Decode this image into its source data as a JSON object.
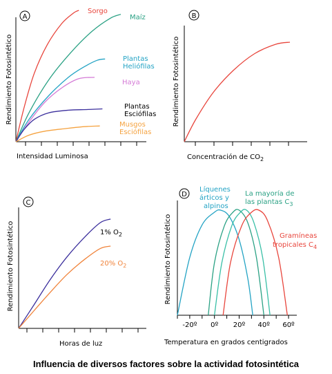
{
  "caption": "Influencia de diversos factores sobre la actividad fotosintética",
  "chart_data": [
    {
      "panel": "A",
      "type": "line",
      "xlabel": "Intensidad Luminosa",
      "ylabel": "Rendimiento Fotosintético",
      "series": [
        {
          "name": "Sorgo",
          "color": "#e8453c",
          "values": [
            [
              0,
              0
            ],
            [
              0.06,
              0.25
            ],
            [
              0.14,
              0.52
            ],
            [
              0.24,
              0.74
            ],
            [
              0.35,
              0.9
            ],
            [
              0.44,
              0.98
            ],
            [
              0.48,
              1.0
            ]
          ]
        },
        {
          "name": "Maíz",
          "color": "#2aa184",
          "values": [
            [
              0,
              0
            ],
            [
              0.1,
              0.22
            ],
            [
              0.25,
              0.47
            ],
            [
              0.42,
              0.68
            ],
            [
              0.58,
              0.84
            ],
            [
              0.72,
              0.94
            ],
            [
              0.8,
              0.97
            ]
          ]
        },
        {
          "name": "Plantas Heliófilas",
          "color": "#23a3c4",
          "values": [
            [
              0,
              0
            ],
            [
              0.1,
              0.17
            ],
            [
              0.25,
              0.35
            ],
            [
              0.4,
              0.49
            ],
            [
              0.52,
              0.57
            ],
            [
              0.62,
              0.62
            ],
            [
              0.68,
              0.63
            ]
          ]
        },
        {
          "name": "Haya",
          "color": "#d47ad6",
          "values": [
            [
              0,
              0
            ],
            [
              0.1,
              0.15
            ],
            [
              0.22,
              0.3
            ],
            [
              0.35,
              0.41
            ],
            [
              0.48,
              0.48
            ],
            [
              0.6,
              0.49
            ]
          ]
        },
        {
          "name": "Plantas Esciófilas",
          "color": "#3a2e9c",
          "values": [
            [
              0,
              0
            ],
            [
              0.06,
              0.09
            ],
            [
              0.14,
              0.17
            ],
            [
              0.25,
              0.22
            ],
            [
              0.4,
              0.24
            ],
            [
              0.55,
              0.245
            ],
            [
              0.66,
              0.25
            ]
          ]
        },
        {
          "name": "Musgos Esciófilos",
          "color": "#f5a23f",
          "values": [
            [
              0,
              0
            ],
            [
              0.1,
              0.05
            ],
            [
              0.22,
              0.08
            ],
            [
              0.38,
              0.1
            ],
            [
              0.52,
              0.115
            ],
            [
              0.64,
              0.12
            ]
          ]
        }
      ]
    },
    {
      "panel": "B",
      "type": "line",
      "xlabel": "Concentración de CO",
      "xlabel_sub": "2",
      "ylabel": "Rendimiento Fotosintético",
      "series": [
        {
          "color": "#e8453c",
          "values": [
            [
              0,
              0
            ],
            [
              0.1,
              0.22
            ],
            [
              0.25,
              0.48
            ],
            [
              0.42,
              0.69
            ],
            [
              0.6,
              0.85
            ],
            [
              0.78,
              0.94
            ],
            [
              0.9,
              0.96
            ]
          ]
        }
      ]
    },
    {
      "panel": "C",
      "type": "line",
      "xlabel": "Horas de luz",
      "ylabel": "Rendimiento Fotosintético",
      "series": [
        {
          "name": "1% O",
          "name_sub": "2",
          "color": "#3a2e9c",
          "values": [
            [
              0,
              0
            ],
            [
              0.12,
              0.2
            ],
            [
              0.25,
              0.42
            ],
            [
              0.38,
              0.61
            ],
            [
              0.52,
              0.78
            ],
            [
              0.64,
              0.9
            ],
            [
              0.72,
              0.93
            ]
          ]
        },
        {
          "name": "20% O",
          "name_sub": "2",
          "color": "#f0833a",
          "values": [
            [
              0,
              0
            ],
            [
              0.12,
              0.15
            ],
            [
              0.25,
              0.31
            ],
            [
              0.38,
              0.46
            ],
            [
              0.52,
              0.59
            ],
            [
              0.64,
              0.68
            ],
            [
              0.72,
              0.7
            ]
          ]
        }
      ]
    },
    {
      "panel": "D",
      "type": "line",
      "xlabel": "Temperatura  en grados centigrados",
      "ylabel": "Rendimiento Fotosintético",
      "xticks": [
        "-20º",
        "0º",
        "20º",
        "40º",
        "60º"
      ],
      "xlim": [
        -30,
        65
      ],
      "series": [
        {
          "name": "Líquenes árticos y alpinos",
          "color": "#23a3c4",
          "values": [
            [
              -30,
              0
            ],
            [
              -20,
              0.55
            ],
            [
              -10,
              0.86
            ],
            [
              0,
              0.98
            ],
            [
              5,
              1.0
            ],
            [
              12,
              0.94
            ],
            [
              20,
              0.72
            ],
            [
              27,
              0.35
            ],
            [
              31,
              0
            ]
          ]
        },
        {
          "name": "La mayoría de las plantas C",
          "name_sub": "3",
          "color": "#2aa184",
          "values": [
            [
              -5,
              0
            ],
            [
              0,
              0.5
            ],
            [
              8,
              0.85
            ],
            [
              15,
              0.98
            ],
            [
              20,
              1.0
            ],
            [
              27,
              0.88
            ],
            [
              34,
              0.55
            ],
            [
              40,
              0
            ]
          ]
        },
        {
          "name": "",
          "color": "#38bfa6",
          "values": [
            [
              0,
              0
            ],
            [
              6,
              0.5
            ],
            [
              14,
              0.85
            ],
            [
              21,
              0.98
            ],
            [
              26,
              1.0
            ],
            [
              32,
              0.88
            ],
            [
              39,
              0.55
            ],
            [
              45,
              0
            ]
          ]
        },
        {
          "name": "Gramíneas tropicales C",
          "name_sub": "4",
          "color": "#e8453c",
          "values": [
            [
              7,
              0
            ],
            [
              13,
              0.5
            ],
            [
              22,
              0.85
            ],
            [
              30,
              0.98
            ],
            [
              36,
              1.0
            ],
            [
              43,
              0.9
            ],
            [
              52,
              0.55
            ],
            [
              59,
              0
            ]
          ]
        }
      ]
    }
  ]
}
